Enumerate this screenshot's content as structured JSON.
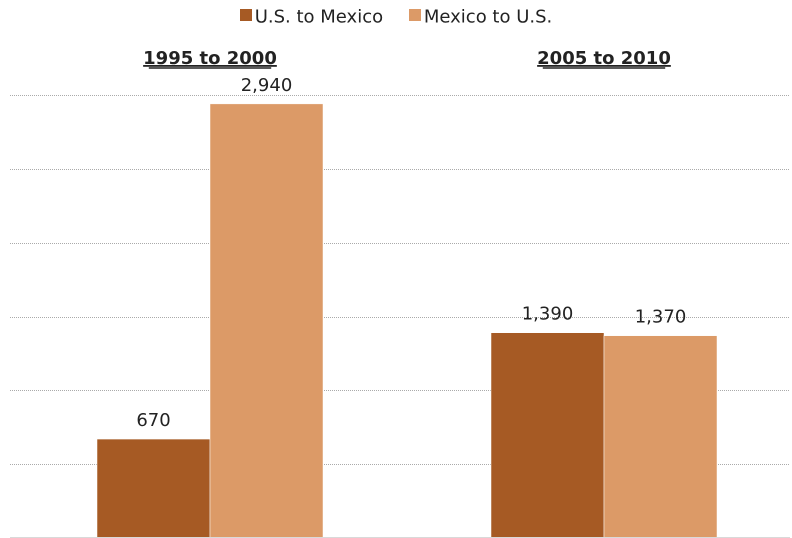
{
  "chart_data": {
    "type": "bar",
    "categories": [
      "1995 to 2000",
      "2005 to 2010"
    ],
    "series": [
      {
        "name": "U.S. to Mexico",
        "values": [
          670,
          1390
        ],
        "labels": [
          "670",
          "1,390"
        ],
        "color": "#a65a24"
      },
      {
        "name": "Mexico to U.S.",
        "values": [
          2940,
          1370
        ],
        "labels": [
          "2,940",
          "1,370"
        ],
        "color": "#dc9a67"
      }
    ],
    "ylim": [
      0,
      3000
    ],
    "grid": true,
    "legend_position": "top-center",
    "title": "",
    "xlabel": "",
    "ylabel": ""
  },
  "legend": {
    "items": [
      {
        "label": "U.S. to Mexico",
        "color": "#a65a24"
      },
      {
        "label": "Mexico to U.S.",
        "color": "#dc9a67"
      }
    ]
  },
  "colors": {
    "gridline": "#aaaaaa",
    "axis": "#d9d9d9",
    "text": "#222222"
  }
}
